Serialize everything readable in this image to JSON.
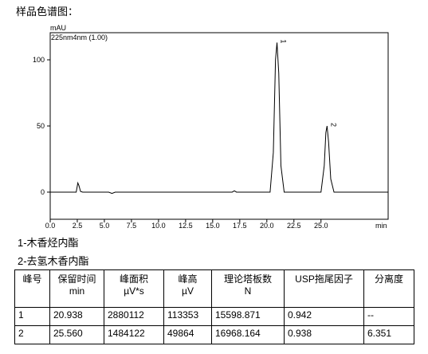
{
  "heading": "样品色谱图：",
  "chart_data": {
    "type": "line",
    "y_label": "mAU",
    "x_label": "min",
    "annotation": "225nm4nm (1.00)",
    "peak_labels": [
      {
        "text": "1",
        "x": 20.938,
        "y": 113
      },
      {
        "text": "2",
        "x": 25.56,
        "y": 50
      }
    ],
    "x": [
      0,
      2.4,
      2.55,
      2.65,
      2.8,
      3.0,
      5.4,
      5.7,
      6.0,
      16.8,
      17.0,
      17.2,
      20.3,
      20.6,
      20.8,
      20.938,
      21.1,
      21.3,
      21.6,
      25.0,
      25.3,
      25.45,
      25.56,
      25.7,
      25.9,
      26.2,
      31.2
    ],
    "series": [
      {
        "color": "#000000",
        "values": [
          0,
          0,
          7,
          5,
          0.5,
          0,
          0,
          -1,
          0,
          0,
          1,
          0,
          0,
          30,
          100,
          113,
          90,
          20,
          0,
          0,
          20,
          45,
          50,
          38,
          10,
          0,
          0
        ]
      }
    ],
    "xlim": [
      0,
      31.2
    ],
    "ylim": [
      -20.5,
      120.5
    ],
    "xticks": [
      {
        "value": 0,
        "label": "0.0"
      },
      {
        "value": 2.5,
        "label": "2.5"
      },
      {
        "value": 5,
        "label": "5.0"
      },
      {
        "value": 7.5,
        "label": "7.5"
      },
      {
        "value": 10,
        "label": "10.0"
      },
      {
        "value": 12.5,
        "label": "12.5"
      },
      {
        "value": 15,
        "label": "15.0"
      },
      {
        "value": 17.5,
        "label": "17.5"
      },
      {
        "value": 20,
        "label": "20.0"
      },
      {
        "value": 22.5,
        "label": "22.5"
      },
      {
        "value": 25,
        "label": "25.0"
      }
    ],
    "yticks": [
      0,
      50,
      100
    ]
  },
  "notes": [
    "1-木香烃内酯",
    "2-去氢木香内酯"
  ],
  "table": {
    "header": [
      [
        "峰号"
      ],
      [
        "保留时间",
        "min"
      ],
      [
        "峰面积",
        "µV*s"
      ],
      [
        "峰高",
        "µV"
      ],
      [
        "理论塔板数",
        "N"
      ],
      [
        "USP拖尾因子"
      ],
      [
        "分离度"
      ]
    ],
    "rows": [
      [
        "1",
        "20.938",
        "2880112",
        "113353",
        "15598.871",
        "0.942",
        "--"
      ],
      [
        "2",
        "25.560",
        "1484122",
        "49864",
        "16968.164",
        "0.938",
        "6.351"
      ]
    ]
  }
}
